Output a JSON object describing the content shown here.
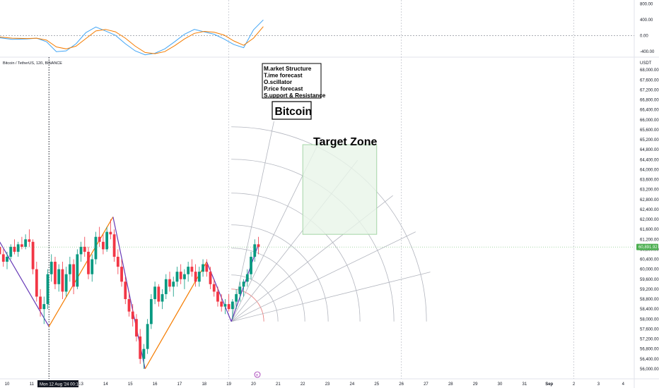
{
  "symbol_label": "Bitcoin / TetherUS, 12ß, BINANCE",
  "currency": "USDT",
  "current_price": "60,891.92",
  "cursor_date": "Mon 12 Aug '24   00:16",
  "events_icon": "event-e-icon",
  "annotations": {
    "legend_lines": [
      "M.arket Structure",
      "T.ime forecast",
      "O.scillator",
      "P.rice forecast",
      "S.upport & Resistance"
    ],
    "bitcoin_label": "Bitcoin",
    "target_zone_label": "Target Zone"
  },
  "colors": {
    "up": "#089981",
    "down": "#089981",
    "wave_down": "#673ab7",
    "wave_up": "#f57c00",
    "osc_blue": "#42a5f5",
    "osc_orange": "#f57c00",
    "target_fill": "#e8f5e9",
    "target_stroke": "#a5d6a7",
    "price_tag": "#4caf50"
  },
  "chart_data": [
    {
      "type": "line",
      "panel": "oscillator",
      "y_ticks": [
        "800.00",
        "400.00",
        "0.00",
        "-400.00"
      ],
      "ylim": [
        -520,
        900
      ],
      "series": [
        {
          "color": "#42a5f5",
          "x": [
            9.7,
            10.2,
            10.8,
            11.2,
            11.6,
            12.0,
            12.4,
            12.8,
            13.2,
            13.6,
            14.0,
            14.4,
            14.8,
            15.2,
            15.6,
            16.0,
            16.4,
            16.8,
            17.2,
            17.6,
            18.0,
            18.4,
            18.8,
            19.2,
            19.6,
            20.0,
            20.4
          ],
          "values": [
            -50,
            -90,
            -80,
            -60,
            -150,
            -400,
            -380,
            -200,
            80,
            220,
            120,
            10,
            -200,
            -380,
            -480,
            -440,
            -330,
            -150,
            40,
            160,
            100,
            40,
            -80,
            -220,
            -300,
            150,
            400
          ]
        },
        {
          "color": "#f57c00",
          "x": [
            9.7,
            10.2,
            10.8,
            11.2,
            11.6,
            12.0,
            12.4,
            12.8,
            13.2,
            13.6,
            14.0,
            14.4,
            14.8,
            15.2,
            15.6,
            16.0,
            16.4,
            16.8,
            17.2,
            17.6,
            18.0,
            18.4,
            18.8,
            19.2,
            19.6,
            20.0,
            20.4
          ],
          "values": [
            -30,
            -60,
            -70,
            -60,
            -110,
            -280,
            -330,
            -260,
            -70,
            120,
            160,
            100,
            -60,
            -260,
            -420,
            -450,
            -400,
            -250,
            -80,
            60,
            110,
            90,
            20,
            -130,
            -240,
            -60,
            230
          ]
        }
      ]
    },
    {
      "type": "candlestick",
      "panel": "price",
      "x_ticks": [
        "10",
        "11",
        "12",
        "13",
        "14",
        "15",
        "16",
        "17",
        "18",
        "19",
        "20",
        "21",
        "22",
        "23",
        "24",
        "25",
        "26",
        "27",
        "28",
        "29",
        "30",
        "31",
        "Sep",
        "2",
        "3",
        "4"
      ],
      "y_ticks": [
        "68,000.00",
        "67,600.00",
        "67,200.00",
        "66,800.00",
        "66,400.00",
        "66,000.00",
        "65,600.00",
        "65,200.00",
        "64,800.00",
        "64,400.00",
        "64,000.00",
        "63,600.00",
        "63,200.00",
        "62,800.00",
        "62,400.00",
        "62,000.00",
        "61,600.00",
        "61,200.00",
        "60,800.00",
        "60,400.00",
        "60,000.00",
        "59,600.00",
        "59,200.00",
        "58,800.00",
        "58,400.00",
        "58,000.00",
        "57,600.00",
        "57,200.00",
        "56,800.00",
        "56,400.00",
        "56,000.00",
        "55,600.00"
      ],
      "ylim": [
        55600,
        68400
      ],
      "candles": [
        [
          9.7,
          60900,
          61200,
          60400,
          60600
        ],
        [
          9.85,
          60600,
          60800,
          60100,
          60300
        ],
        [
          10.0,
          60300,
          60700,
          60000,
          60500
        ],
        [
          10.15,
          60500,
          61000,
          60400,
          60900
        ],
        [
          10.3,
          60900,
          61200,
          60600,
          60700
        ],
        [
          10.45,
          60700,
          61100,
          60500,
          61000
        ],
        [
          10.6,
          61000,
          61300,
          60800,
          60900
        ],
        [
          10.75,
          60900,
          61400,
          60800,
          61200
        ],
        [
          10.9,
          61200,
          61600,
          60900,
          61100
        ],
        [
          11.05,
          61100,
          61200,
          59800,
          60000
        ],
        [
          11.2,
          60000,
          60300,
          58700,
          58900
        ],
        [
          11.35,
          58900,
          59200,
          58100,
          58400
        ],
        [
          11.5,
          58400,
          58900,
          57800,
          58600
        ],
        [
          11.65,
          58600,
          60000,
          58400,
          59800
        ],
        [
          11.8,
          59800,
          60600,
          59500,
          60300
        ],
        [
          11.95,
          60300,
          60500,
          59200,
          59400
        ],
        [
          12.1,
          59400,
          60200,
          59100,
          60000
        ],
        [
          12.25,
          60000,
          60300,
          58800,
          59100
        ],
        [
          12.4,
          59100,
          60100,
          58900,
          59800
        ],
        [
          12.55,
          59800,
          60500,
          59500,
          60200
        ],
        [
          12.7,
          60200,
          60400,
          59000,
          59300
        ],
        [
          12.85,
          59300,
          60800,
          59200,
          60600
        ],
        [
          13.0,
          60600,
          61100,
          60300,
          60900
        ],
        [
          13.15,
          60900,
          61300,
          60500,
          60700
        ],
        [
          13.3,
          60700,
          60900,
          59600,
          59800
        ],
        [
          13.45,
          59800,
          60600,
          59500,
          60400
        ],
        [
          13.6,
          60400,
          61500,
          60200,
          61300
        ],
        [
          13.75,
          61300,
          61700,
          60900,
          61100
        ],
        [
          13.9,
          61100,
          61400,
          60600,
          60800
        ],
        [
          14.05,
          60800,
          61700,
          60700,
          61500
        ],
        [
          14.2,
          61500,
          62000,
          61200,
          61400
        ],
        [
          14.35,
          61400,
          61600,
          60300,
          60500
        ],
        [
          14.5,
          60500,
          60800,
          59800,
          60100
        ],
        [
          14.65,
          60100,
          60400,
          59300,
          59500
        ],
        [
          14.8,
          59500,
          59700,
          58600,
          58800
        ],
        [
          14.95,
          58800,
          59100,
          58100,
          58300
        ],
        [
          15.1,
          58300,
          58600,
          57700,
          58000
        ],
        [
          15.25,
          58000,
          58200,
          57100,
          57300
        ],
        [
          15.4,
          57300,
          57600,
          56200,
          56400
        ],
        [
          15.55,
          56400,
          57000,
          56000,
          56800
        ],
        [
          15.7,
          56800,
          58000,
          56600,
          57800
        ],
        [
          15.85,
          57800,
          59000,
          57600,
          58800
        ],
        [
          16.0,
          58800,
          59500,
          58600,
          59300
        ],
        [
          16.15,
          59300,
          59400,
          58500,
          58700
        ],
        [
          16.3,
          58700,
          59200,
          58400,
          59000
        ],
        [
          16.45,
          59000,
          59800,
          58800,
          59600
        ],
        [
          16.6,
          59600,
          59900,
          59100,
          59300
        ],
        [
          16.75,
          59300,
          59700,
          58900,
          59500
        ],
        [
          16.9,
          59500,
          60100,
          59300,
          59900
        ],
        [
          17.05,
          59900,
          60200,
          59400,
          59600
        ],
        [
          17.2,
          59600,
          60000,
          59200,
          59800
        ],
        [
          17.35,
          59800,
          60300,
          59500,
          60100
        ],
        [
          17.5,
          60100,
          60400,
          59700,
          59900
        ],
        [
          17.65,
          59900,
          60200,
          59300,
          59500
        ],
        [
          17.8,
          59500,
          60100,
          59300,
          59900
        ],
        [
          17.95,
          59900,
          60400,
          59700,
          60200
        ],
        [
          18.1,
          60200,
          60400,
          59700,
          59900
        ],
        [
          18.25,
          59900,
          60100,
          59200,
          59400
        ],
        [
          18.4,
          59400,
          59600,
          58900,
          59100
        ],
        [
          18.55,
          59100,
          59300,
          58500,
          58700
        ],
        [
          18.7,
          58700,
          59000,
          58300,
          58500
        ],
        [
          18.85,
          58500,
          58800,
          58200,
          58600
        ],
        [
          19.0,
          58600,
          59000,
          58300,
          58400
        ],
        [
          19.15,
          58400,
          58800,
          58000,
          58700
        ],
        [
          19.3,
          58700,
          59200,
          58400,
          59000
        ],
        [
          19.45,
          59000,
          59500,
          58700,
          59300
        ],
        [
          19.6,
          59300,
          59600,
          58900,
          59500
        ],
        [
          19.75,
          59500,
          60000,
          59300,
          59800
        ],
        [
          19.9,
          59800,
          60700,
          59600,
          60500
        ],
        [
          20.05,
          60500,
          61200,
          60300,
          61000
        ],
        [
          20.2,
          61000,
          61300,
          60600,
          60900
        ]
      ],
      "wave_segments": [
        {
          "color": "#673ab7",
          "x": [
            9.7,
            11.7
          ],
          "y": [
            61100,
            57700
          ]
        },
        {
          "color": "#f57c00",
          "x": [
            11.7,
            14.3
          ],
          "y": [
            57700,
            62100
          ]
        },
        {
          "color": "#673ab7",
          "x": [
            14.3,
            15.6
          ],
          "y": [
            62100,
            56000
          ]
        },
        {
          "color": "#f57c00",
          "x": [
            15.6,
            18.1
          ],
          "y": [
            56000,
            60300
          ]
        },
        {
          "color": "#673ab7",
          "x": [
            18.1,
            19.1
          ],
          "y": [
            60300,
            57900
          ]
        },
        {
          "color": "#673ab7",
          "x": [
            19.1,
            20.2
          ],
          "y": [
            57900,
            61000
          ]
        }
      ],
      "vertical_dotted_lines": [
        11.7,
        19.0,
        26.0,
        33.0
      ],
      "target_zone": {
        "x": [
          22.0,
          25.0
        ],
        "y": [
          61400,
          65000
        ]
      },
      "fan_origin": {
        "x": 19.1,
        "y": 57900
      }
    }
  ]
}
